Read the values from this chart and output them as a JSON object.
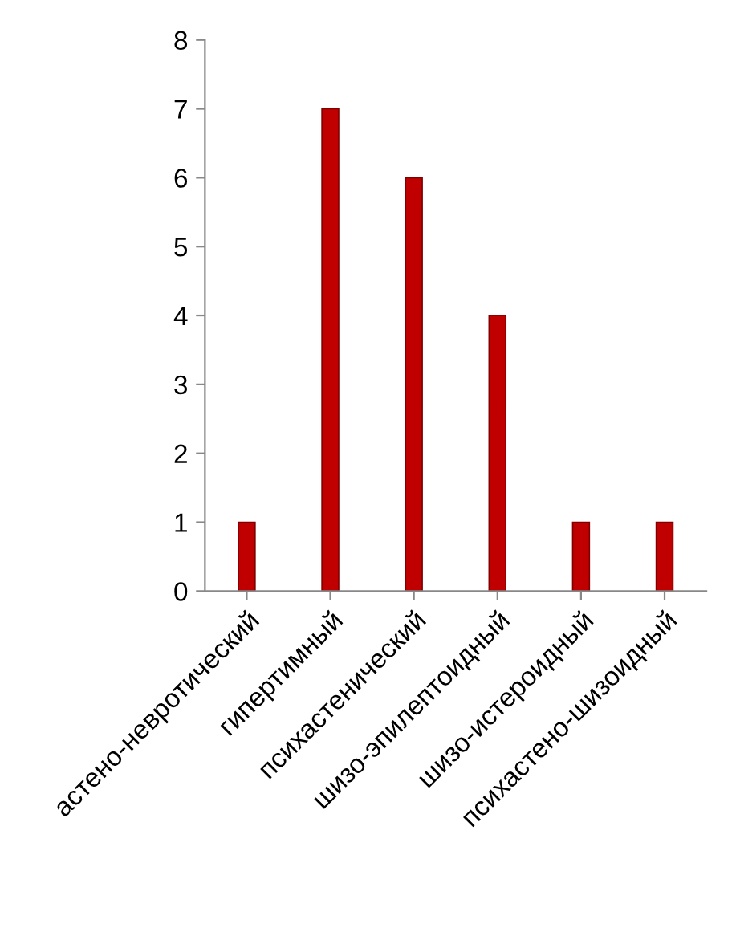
{
  "chart_data": {
    "type": "bar",
    "categories": [
      "астено-невротический",
      "гипертимный",
      "психастенический",
      "шизо-эпилептоидный",
      "шизо-истероидный",
      "психастено-шизоидный"
    ],
    "values": [
      1,
      7,
      6,
      4,
      1,
      1
    ],
    "color": "#c00000",
    "ylim": [
      0,
      8
    ],
    "yticks": [
      0,
      1,
      2,
      3,
      4,
      5,
      6,
      7,
      8
    ],
    "grid": false
  }
}
